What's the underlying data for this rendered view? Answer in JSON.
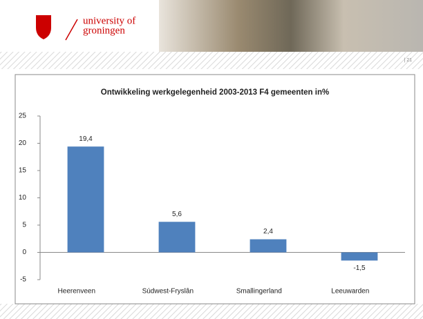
{
  "header": {
    "logo_line1": "university of",
    "logo_line2": "groningen",
    "page_number": "| 21"
  },
  "chart_data": {
    "type": "bar",
    "title": "Ontwikkeling werkgelegenheid  2003-2013 F4 gemeenten in%",
    "categories": [
      "Heerenveen",
      "Súdwest-Fryslân",
      "Smallingerland",
      "Leeuwarden"
    ],
    "values": [
      19.4,
      5.6,
      2.4,
      -1.5
    ],
    "value_labels": [
      "19,4",
      "5,6",
      "2,4",
      "-1,5"
    ],
    "color": "#4f81bd",
    "ylim": [
      -5,
      25
    ],
    "yticks": [
      -5,
      0,
      5,
      10,
      15,
      20,
      25
    ],
    "grid": false
  }
}
